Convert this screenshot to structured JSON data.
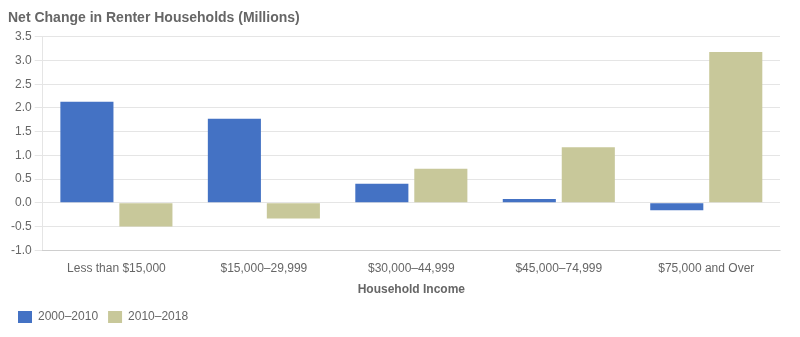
{
  "chart_data": {
    "type": "bar",
    "title": "Net Change in Renter Households (Millions)",
    "xlabel": "Household Income",
    "categories": [
      "Less than $15,000",
      "$15,000–29,999",
      "$30,000–44,999",
      "$45,000–74,999",
      "$75,000 and Over"
    ],
    "series": [
      {
        "name": "2000–2010",
        "color": "#4472C4",
        "values": [
          2.13,
          1.77,
          0.4,
          0.08,
          -0.16
        ]
      },
      {
        "name": "2010–2018",
        "color": "#C8C89A",
        "values": [
          -0.5,
          -0.33,
          0.72,
          1.17,
          3.18
        ]
      }
    ],
    "ylim": [
      -1.0,
      3.5
    ],
    "yticks": [
      {
        "value": -1.0,
        "label": "-1.0"
      },
      -0.5,
      {
        "value": 0.0,
        "label": "0.0"
      },
      0.5,
      {
        "value": 1.0,
        "label": "1.0"
      },
      1.5,
      {
        "value": 2.0,
        "label": "2.0"
      },
      2.5,
      {
        "value": 3.0,
        "label": "3.0"
      },
      3.5
    ],
    "grid": true,
    "legend": "bottom"
  }
}
